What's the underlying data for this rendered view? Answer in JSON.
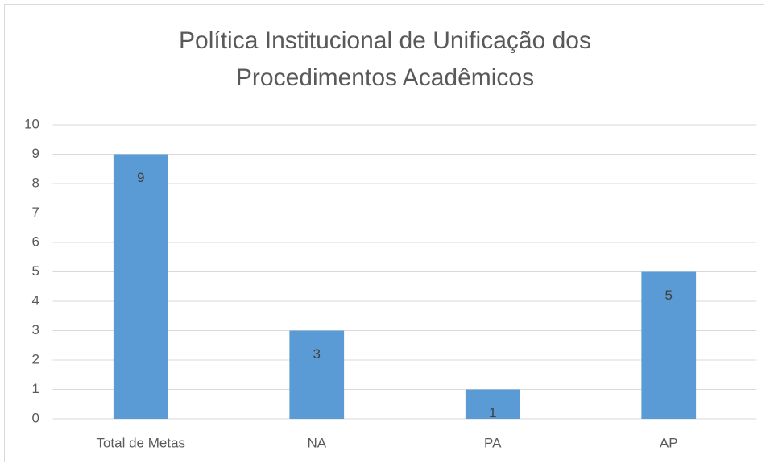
{
  "chart_data": {
    "type": "bar",
    "title": "Política Institucional de Unificação dos Procedimentos Acadêmicos",
    "categories": [
      "Total de Metas",
      "NA",
      "PA",
      "AP"
    ],
    "values": [
      9,
      3,
      1,
      5
    ],
    "color": "#5b9bd5",
    "ylim": [
      0,
      10
    ],
    "yticks": [
      0,
      1,
      2,
      3,
      4,
      5,
      6,
      7,
      8,
      9,
      10
    ],
    "grid": true
  }
}
